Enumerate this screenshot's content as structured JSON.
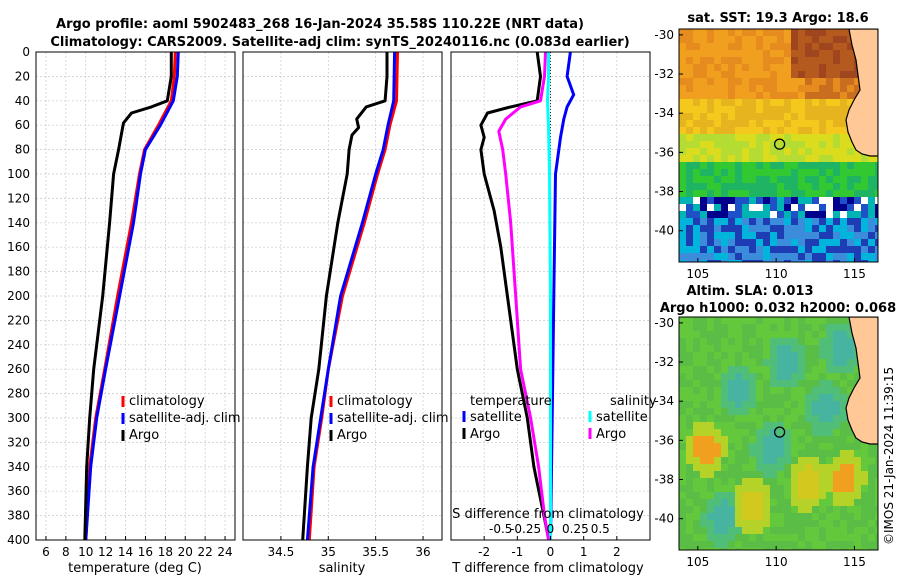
{
  "titles": {
    "line1": "Argo profile: aoml 5902483_268 16-Jan-2024 35.58S 110.22E (NRT data)",
    "line2": "Climatology: CARS2009. Satellite-adj clim: synTS_20240116.nc (0.083d earlier)"
  },
  "colors": {
    "climatology": "#ff0000",
    "satellite": "#0000ff",
    "argo": "#000000",
    "sal_satellite": "#00ffff",
    "sal_argo": "#ff00ff",
    "land": "#ffc896"
  },
  "depth_axis": {
    "ticks": [
      "0",
      "20",
      "40",
      "60",
      "80",
      "100",
      "120",
      "140",
      "160",
      "180",
      "200",
      "220",
      "240",
      "260",
      "280",
      "300",
      "320",
      "340",
      "360",
      "380",
      "400"
    ],
    "range": [
      0,
      400
    ]
  },
  "chart_data": [
    {
      "type": "line",
      "name": "temperature",
      "xlabel": "temperature (deg C)",
      "ylabel": "depth",
      "xlim": [
        5,
        25
      ],
      "ylim": [
        400,
        0
      ],
      "xticks": [
        "6",
        "8",
        "10",
        "12",
        "14",
        "16",
        "18",
        "20",
        "22",
        "24"
      ],
      "legend": {
        "placement": "bottom-right",
        "labels": [
          "climatology",
          "satellite-adj. clim",
          "Argo"
        ]
      },
      "series": [
        {
          "name": "climatology",
          "color": "#ff0000",
          "depth": [
            0,
            20,
            40,
            60,
            80,
            100,
            140,
            200,
            260,
            300,
            340,
            400
          ],
          "values": [
            19.0,
            18.9,
            18.6,
            17.3,
            15.9,
            15.4,
            14.6,
            13.2,
            11.9,
            11.0,
            10.4,
            10.0
          ]
        },
        {
          "name": "satellite-adj. clim",
          "color": "#0000ff",
          "depth": [
            0,
            20,
            40,
            60,
            80,
            100,
            140,
            200,
            260,
            300,
            340,
            400
          ],
          "values": [
            19.3,
            19.2,
            18.8,
            17.5,
            16.0,
            15.5,
            14.8,
            13.4,
            12.0,
            11.1,
            10.5,
            10.0
          ]
        },
        {
          "name": "Argo",
          "color": "#000000",
          "depth": [
            0,
            20,
            40,
            45,
            50,
            58,
            62,
            80,
            100,
            140,
            200,
            260,
            300,
            340,
            400
          ],
          "values": [
            18.6,
            18.6,
            18.2,
            16.6,
            14.6,
            13.8,
            13.7,
            13.3,
            12.8,
            12.4,
            11.7,
            10.8,
            10.4,
            10.1,
            9.9
          ]
        }
      ]
    },
    {
      "type": "line",
      "name": "salinity",
      "xlabel": "salinity",
      "ylabel": "depth",
      "xlim": [
        34.1,
        36.2
      ],
      "ylim": [
        400,
        0
      ],
      "xticks": [
        "34.5",
        "35",
        "35.5",
        "36"
      ],
      "legend": {
        "placement": "bottom-right",
        "labels": [
          "climatology",
          "satellite-adj. clim",
          "Argo"
        ]
      },
      "series": [
        {
          "name": "climatology",
          "color": "#ff0000",
          "depth": [
            0,
            40,
            60,
            80,
            100,
            140,
            200,
            260,
            300,
            340,
            400
          ],
          "values": [
            35.73,
            35.72,
            35.65,
            35.6,
            35.52,
            35.38,
            35.15,
            35.0,
            34.93,
            34.85,
            34.8
          ]
        },
        {
          "name": "satellite-adj. clim",
          "color": "#0000ff",
          "depth": [
            0,
            40,
            60,
            80,
            100,
            140,
            200,
            260,
            300,
            340,
            400
          ],
          "values": [
            35.7,
            35.69,
            35.63,
            35.58,
            35.5,
            35.36,
            35.13,
            35.0,
            34.92,
            34.84,
            34.78
          ]
        },
        {
          "name": "Argo",
          "color": "#000000",
          "depth": [
            0,
            20,
            40,
            45,
            55,
            62,
            68,
            80,
            100,
            140,
            200,
            260,
            300,
            340,
            400
          ],
          "values": [
            35.62,
            35.62,
            35.6,
            35.4,
            35.3,
            35.32,
            35.25,
            35.22,
            35.2,
            35.1,
            34.98,
            34.9,
            34.82,
            34.78,
            34.73
          ]
        }
      ]
    },
    {
      "type": "line",
      "name": "difference",
      "xlabel": "T difference from climatology",
      "x2label": "S difference from climatology",
      "ylabel": "depth",
      "xlim": [
        -3,
        3
      ],
      "ylim": [
        400,
        0
      ],
      "xticks": [
        "-2",
        "-1",
        "0",
        "1",
        "2"
      ],
      "x2lim": [
        -1,
        1
      ],
      "x2ticks": [
        "-0.5",
        "-0.25",
        "0",
        "0.25",
        "0.5"
      ],
      "legend": {
        "placement": "bottom",
        "temperature_header": "temperature",
        "salinity_header": "salinity",
        "labels": [
          "satellite",
          "Argo",
          "satellite",
          "Argo"
        ]
      },
      "series": [
        {
          "name": "T satellite",
          "color": "#0000ff",
          "axis": "T",
          "depth": [
            0,
            20,
            35,
            45,
            55,
            70,
            100,
            200,
            300,
            400
          ],
          "values": [
            0.6,
            0.5,
            0.7,
            0.5,
            0.4,
            0.3,
            0.15,
            0.1,
            0.05,
            0.0
          ]
        },
        {
          "name": "T Argo",
          "color": "#000000",
          "axis": "T",
          "depth": [
            0,
            20,
            40,
            45,
            50,
            60,
            70,
            80,
            100,
            130,
            160,
            200,
            260,
            300,
            340,
            380,
            400
          ],
          "values": [
            -0.4,
            -0.3,
            -0.4,
            -1.2,
            -1.9,
            -2.1,
            -2.0,
            -2.1,
            -2.0,
            -1.7,
            -1.5,
            -1.3,
            -1.0,
            -0.7,
            -0.5,
            -0.2,
            -0.05
          ]
        },
        {
          "name": "S satellite",
          "color": "#00ffff",
          "axis": "S",
          "depth": [
            0,
            20,
            40,
            60,
            100,
            200,
            300,
            400
          ],
          "values": [
            -0.02,
            -0.02,
            -0.03,
            -0.02,
            -0.01,
            0.0,
            0.0,
            0.0
          ]
        },
        {
          "name": "S Argo",
          "color": "#ff00ff",
          "axis": "S",
          "depth": [
            0,
            20,
            40,
            45,
            55,
            65,
            80,
            100,
            140,
            200,
            260,
            300,
            340,
            380,
            400
          ],
          "values": [
            -0.05,
            -0.06,
            -0.1,
            -0.3,
            -0.45,
            -0.52,
            -0.48,
            -0.45,
            -0.4,
            -0.35,
            -0.3,
            -0.2,
            -0.12,
            -0.06,
            -0.02
          ]
        }
      ]
    },
    {
      "type": "heatmap",
      "name": "sat SST",
      "title": "sat. SST: 19.3 Argo: 18.6",
      "xticks": [
        "105",
        "110",
        "115"
      ],
      "yticks": [
        "-30",
        "-32",
        "-34",
        "-36",
        "-38",
        "-40"
      ],
      "xlim": [
        103.8,
        116.5
      ],
      "ylim": [
        -41.6,
        -29.7
      ],
      "profile_location": [
        110.22,
        -35.58
      ]
    },
    {
      "type": "heatmap",
      "name": "altimetry SLA",
      "title": "Altim. SLA: 0.013",
      "subtitle": "Argo h1000: 0.032 h2000: 0.068",
      "xticks": [
        "105",
        "110",
        "115"
      ],
      "yticks": [
        "-30",
        "-32",
        "-34",
        "-36",
        "-38",
        "-40"
      ],
      "xlim": [
        103.8,
        116.5
      ],
      "ylim": [
        -41.6,
        -29.7
      ],
      "profile_location": [
        110.22,
        -35.58
      ]
    }
  ],
  "watermark": "©IMOS 21-Jan-2024 11:39:15"
}
